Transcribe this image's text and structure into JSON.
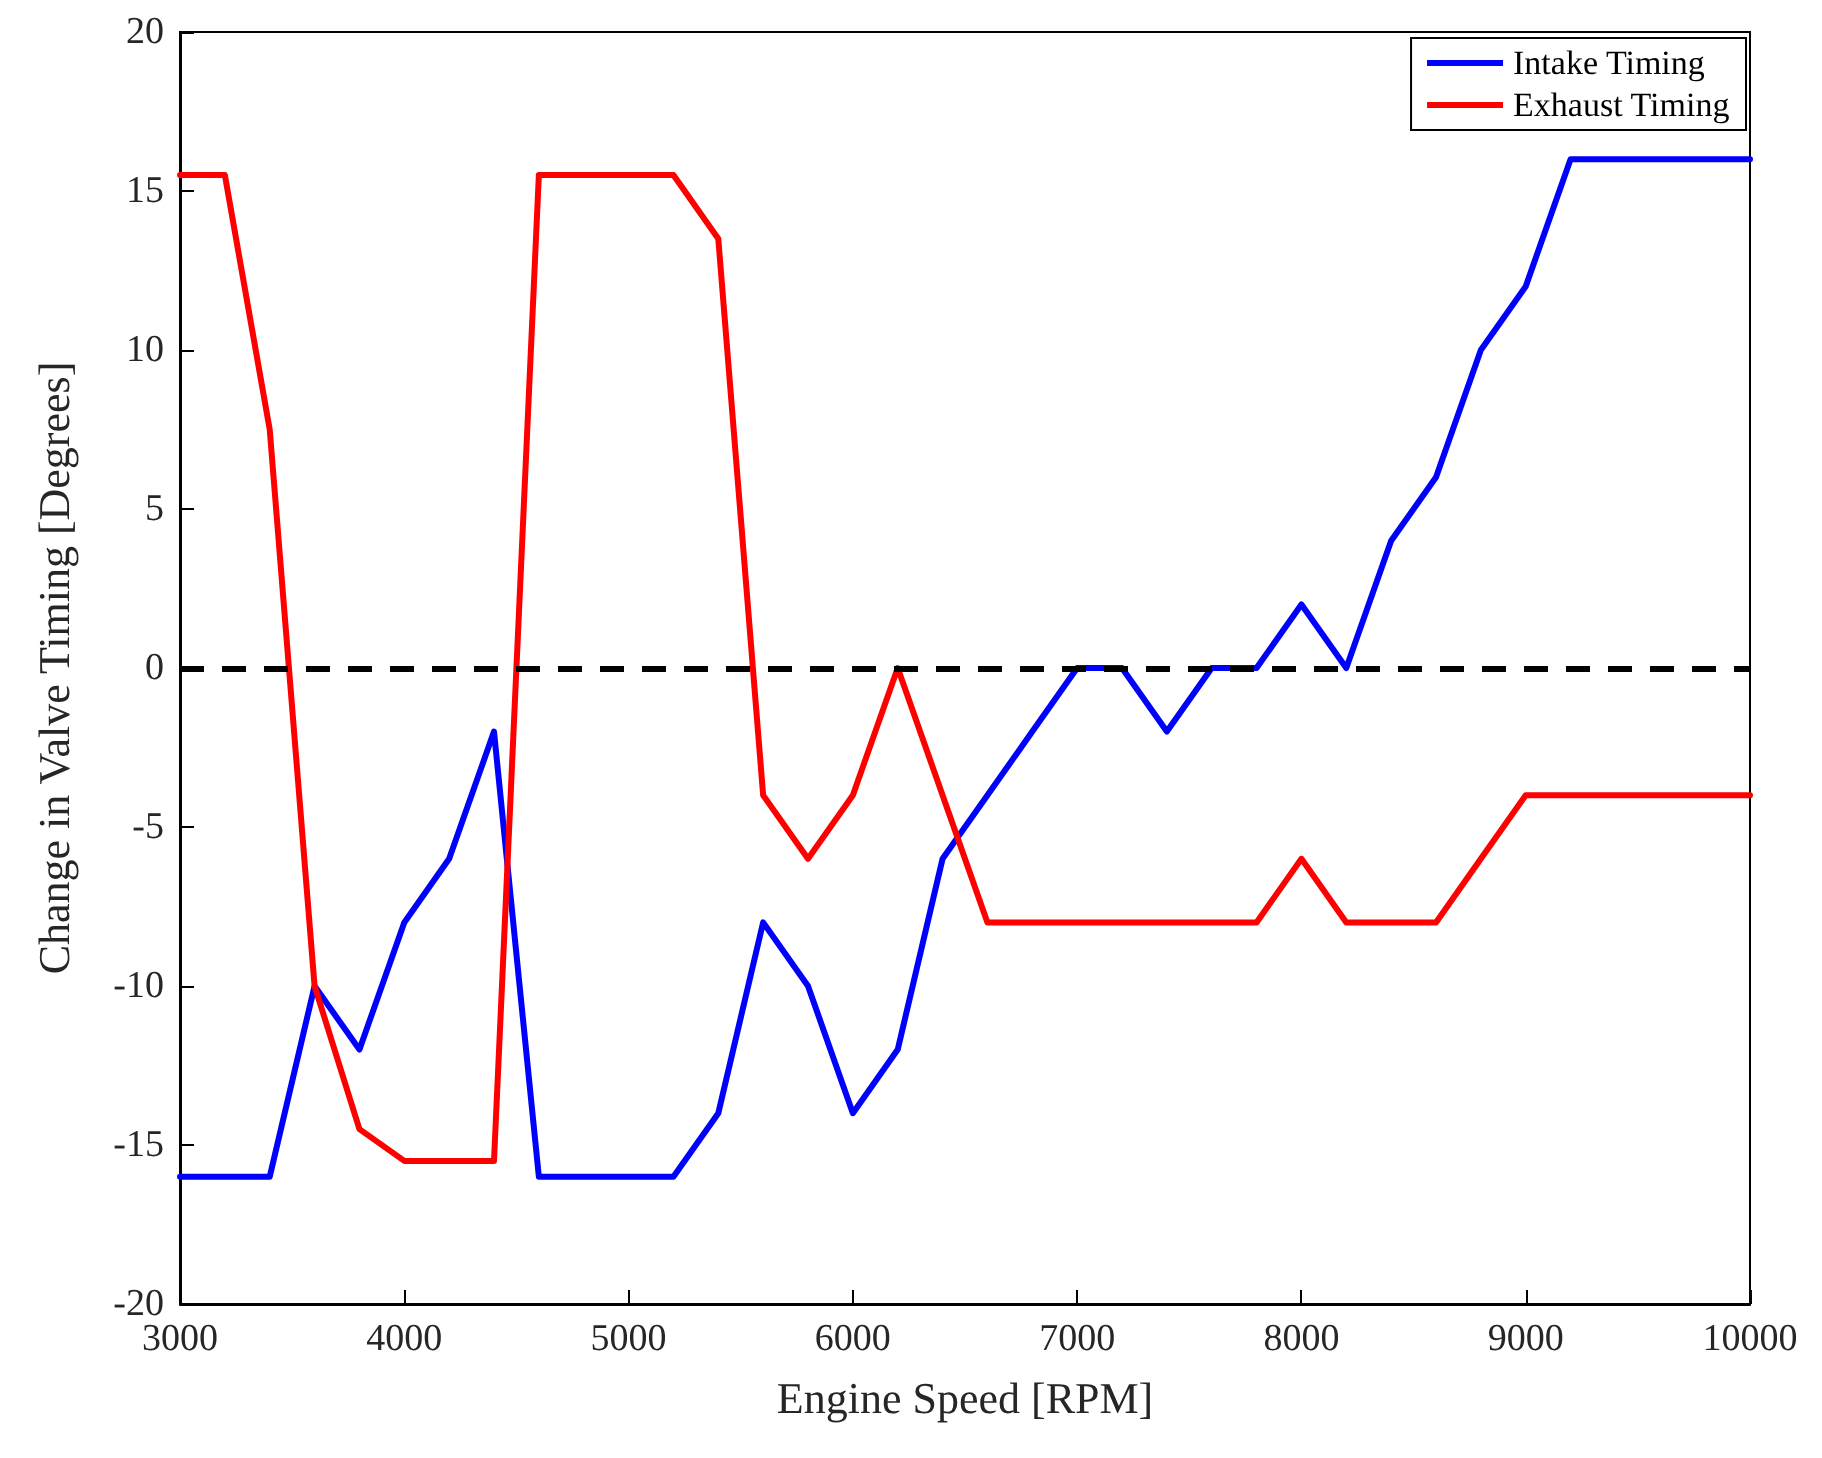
{
  "chart_data": {
    "type": "line",
    "xlabel": "Engine Speed [RPM]",
    "ylabel": "Change in Valve Timing [Degrees]",
    "x": [
      3000,
      3200,
      3400,
      3600,
      3800,
      4000,
      4200,
      4400,
      4600,
      4800,
      5000,
      5200,
      5400,
      5600,
      5800,
      6000,
      6200,
      6400,
      6600,
      6800,
      7000,
      7200,
      7400,
      7600,
      7800,
      8000,
      8200,
      8400,
      8600,
      8800,
      9000,
      9200,
      9400,
      9600,
      9800,
      10000
    ],
    "series": [
      {
        "name": "Intake Timing",
        "color": "#0000ff",
        "values": [
          -16,
          -16,
          -16,
          -10,
          -12,
          -8,
          -6,
          -2,
          -16,
          -16,
          -16,
          -16,
          -14,
          -8,
          -10,
          -14,
          -12,
          -6,
          -4,
          -2,
          0,
          0,
          -2,
          0,
          0,
          2,
          0,
          4,
          6,
          10,
          12,
          16,
          16,
          16,
          16,
          16
        ]
      },
      {
        "name": "Exhaust Timing",
        "color": "#ff0000",
        "values": [
          15.5,
          15.5,
          7.5,
          -10,
          -14.5,
          -15.5,
          -15.5,
          -15.5,
          15.5,
          15.5,
          15.5,
          15.5,
          13.5,
          -4,
          -6,
          -4,
          0,
          -4,
          -8,
          -8,
          -8,
          -8,
          -8,
          -8,
          -8,
          -6,
          -8,
          -8,
          -8,
          -6,
          -4,
          -4,
          -4,
          -4,
          -4,
          -4
        ]
      }
    ],
    "xlim": [
      3000,
      10000
    ],
    "xticks": [
      3000,
      4000,
      5000,
      6000,
      7000,
      8000,
      9000,
      10000
    ],
    "ylim": [
      -20,
      20
    ],
    "yticks": [
      -20,
      -15,
      -10,
      -5,
      0,
      5,
      10,
      15,
      20
    ],
    "ref_lines": [
      {
        "axis": "y",
        "value": 0,
        "color": "#000000",
        "line_style": "dashed"
      }
    ],
    "legend": "top right",
    "grid": false,
    "marker": "none",
    "line_style": "solid"
  }
}
